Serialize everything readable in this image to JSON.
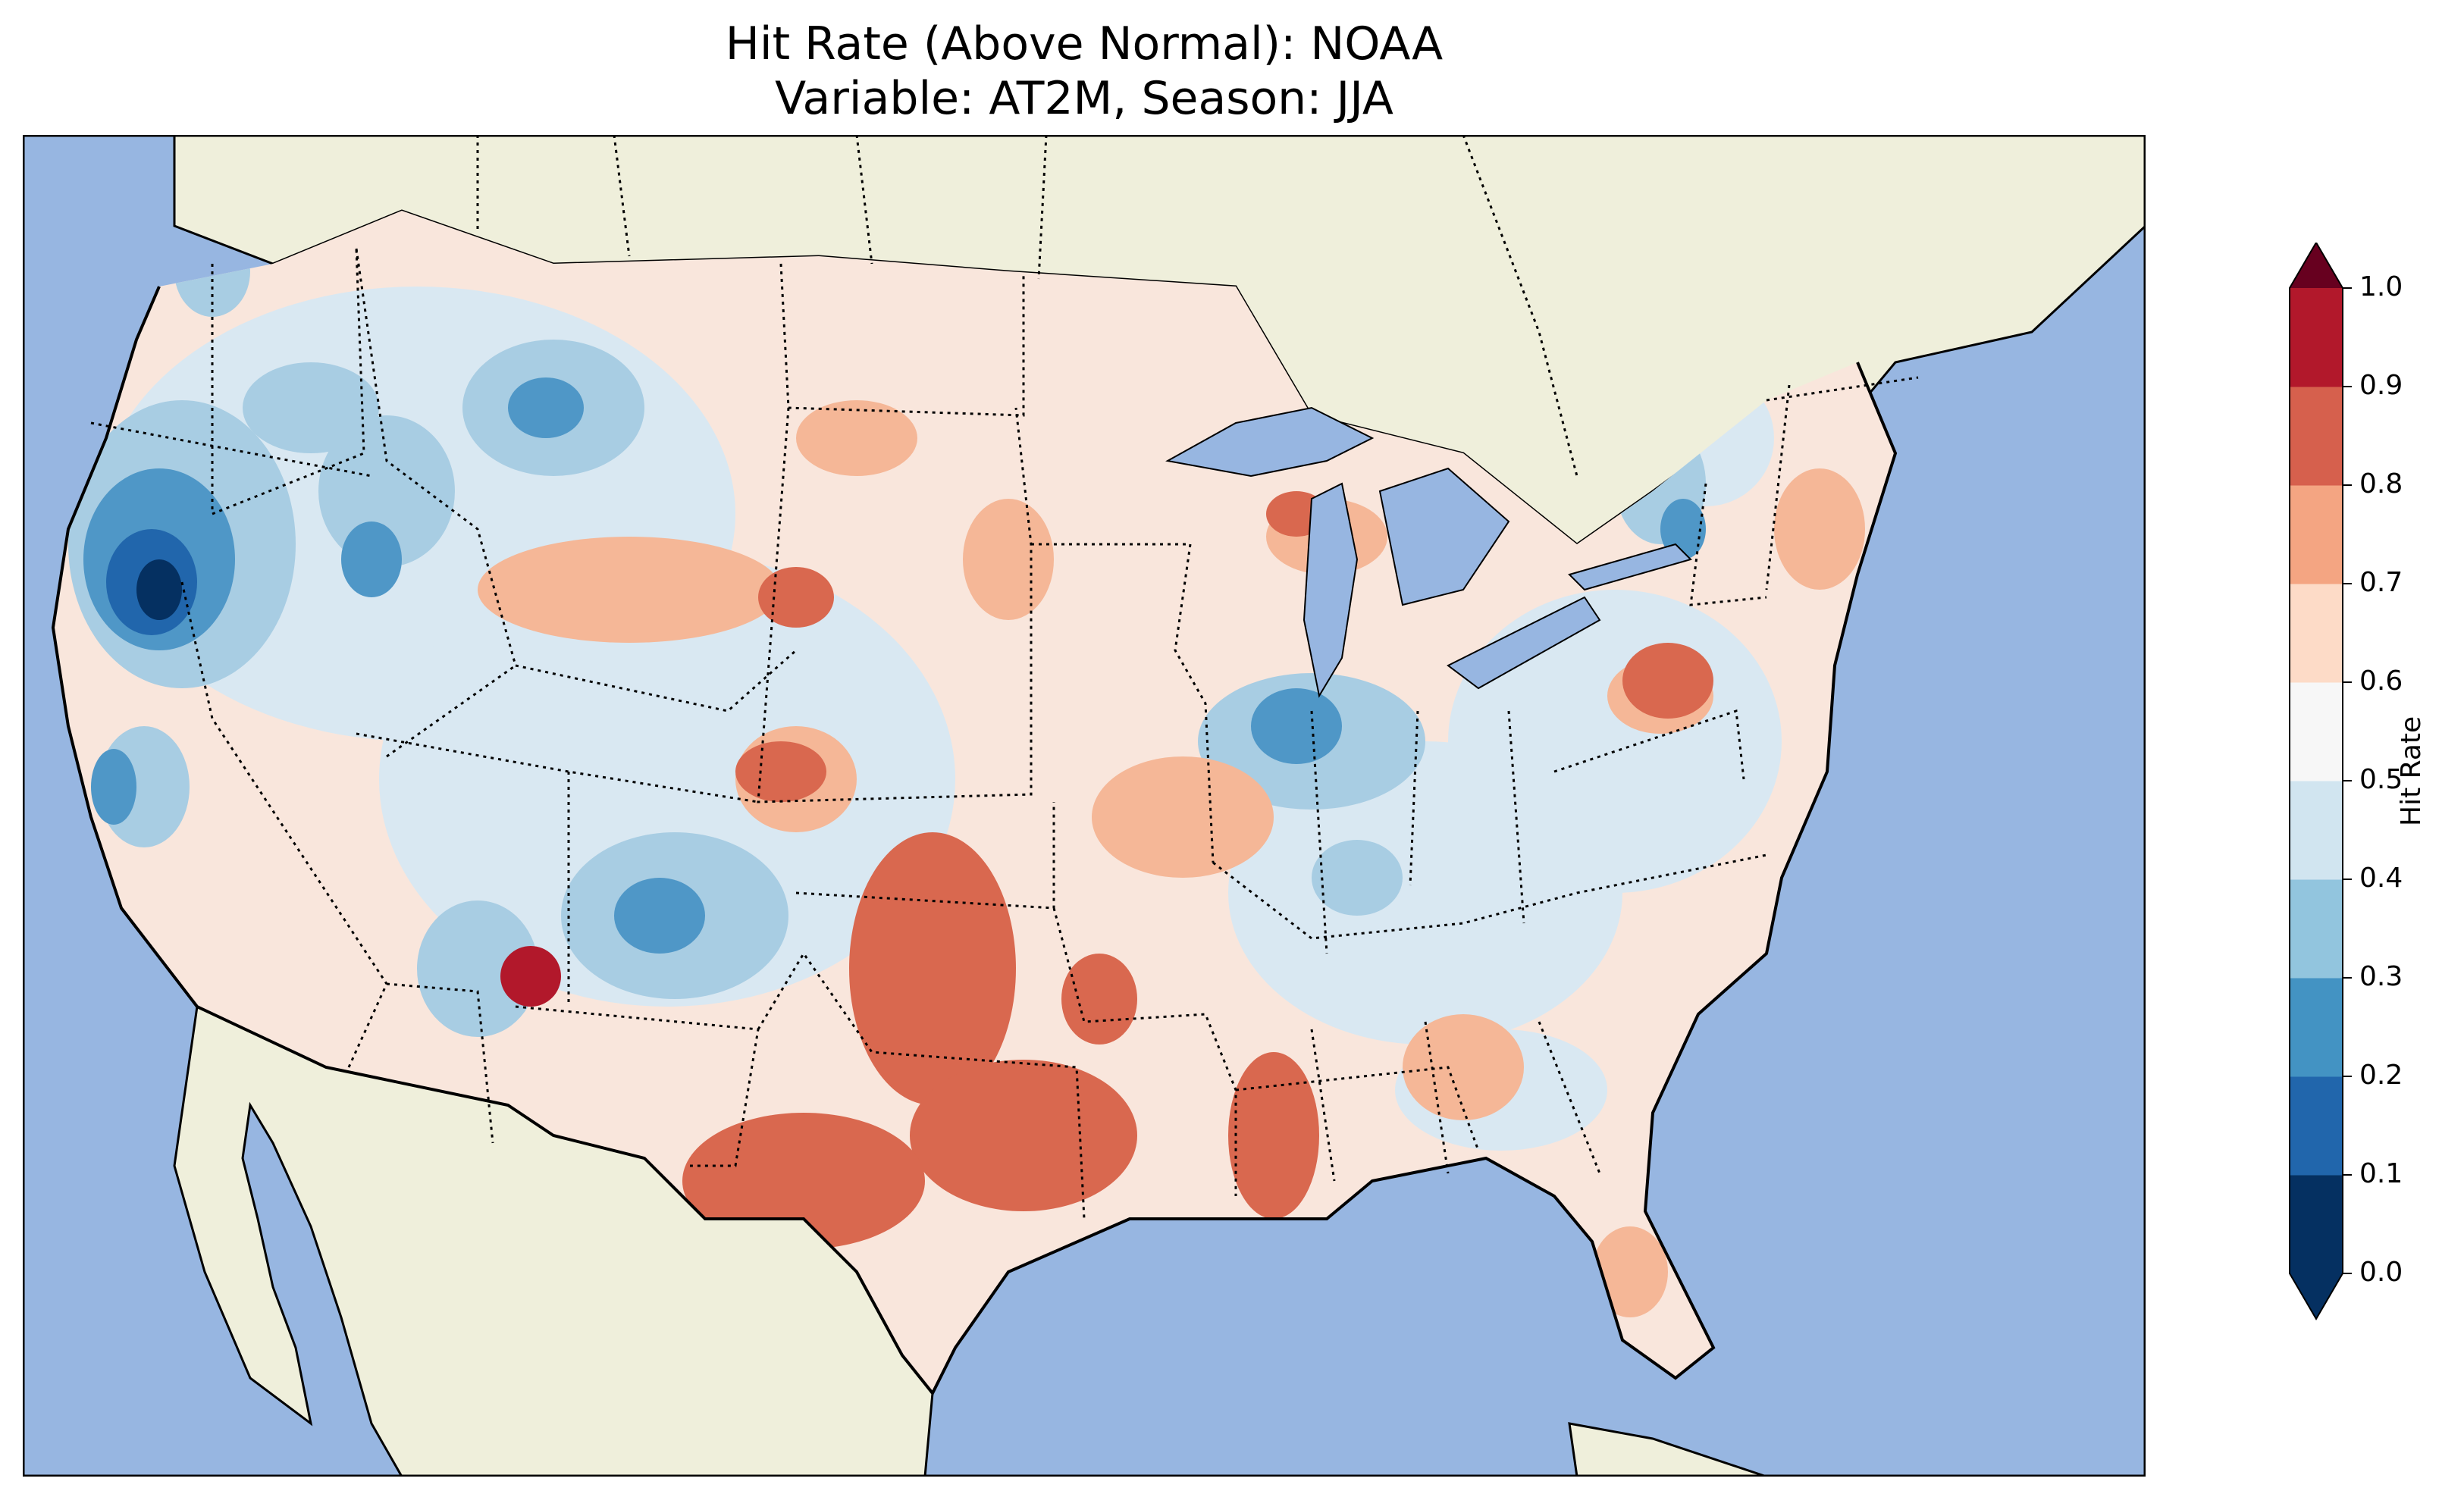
{
  "title": {
    "line1": "Hit Rate (Above Normal): NOAA",
    "line2": "Variable: AT2M, Season: JJA"
  },
  "colorbar": {
    "label": "Hit Rate",
    "ticks": [
      "0.0",
      "0.1",
      "0.2",
      "0.3",
      "0.4",
      "0.5",
      "0.6",
      "0.7",
      "0.8",
      "0.9",
      "1.0"
    ],
    "colors": [
      "#053061",
      "#2166ac",
      "#4393c3",
      "#92c5de",
      "#d1e5f0",
      "#f7f7f7",
      "#fddbc7",
      "#f4a582",
      "#d6604d",
      "#b2182b",
      "#67001f"
    ],
    "extend": "both"
  },
  "map": {
    "ocean_color": "#97b6e1",
    "land_color": "#efefdb",
    "lake_color": "#97b6e1",
    "region": "Contiguous United States",
    "features": [
      "coastlines",
      "state borders",
      "country borders",
      "lakes"
    ]
  }
}
